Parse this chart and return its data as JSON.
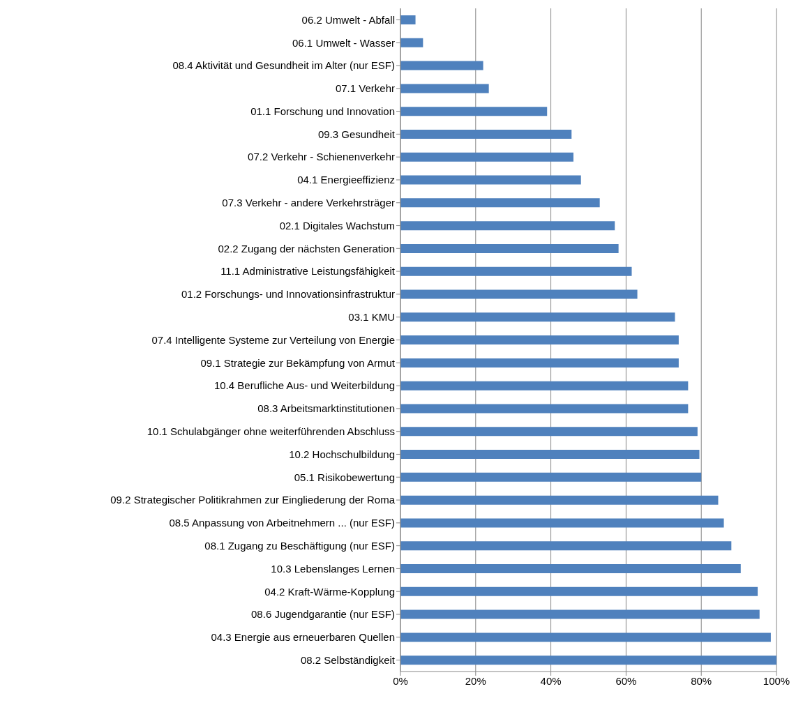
{
  "chart_data": {
    "type": "bar",
    "orientation": "horizontal",
    "categories": [
      "06.2 Umwelt - Abfall",
      "06.1 Umwelt - Wasser",
      "08.4 Aktivität und Gesundheit im Alter (nur ESF)",
      "07.1 Verkehr ",
      "01.1 Forschung und Innovation",
      "09.3 Gesundheit",
      "07.2 Verkehr - Schienenverkehr",
      "04.1 Energieeffizienz",
      "07.3 Verkehr - andere Verkehrsträger",
      "02.1 Digitales Wachstum",
      "02.2 Zugang der nächsten Generation",
      "11.1 Administrative Leistungsfähigkeit",
      "01.2 Forschungs- und Innovationsinfrastruktur",
      "03.1 KMU",
      "07.4 Intelligente Systeme zur Verteilung von Energie",
      "09.1 Strategie zur Bekämpfung von Armut",
      "10.4 Berufliche Aus- und Weiterbildung",
      "08.3 Arbeitsmarktinstitutionen",
      "10.1 Schulabgänger ohne weiterführenden Abschluss",
      "10.2 Hochschulbildung",
      "05.1 Risikobewertung",
      "09.2 Strategischer Politikrahmen zur Eingliederung der Roma",
      "08.5 Anpassung von Arbeitnehmern ... (nur ESF)",
      "08.1 Zugang zu Beschäftigung (nur ESF)",
      "10.3 Lebenslanges Lernen",
      "04.2 Kraft-Wärme-Kopplung",
      "08.6 Jugendgarantie (nur ESF)",
      "04.3 Energie aus erneuerbaren Quellen",
      "08.2 Selbständigkeit"
    ],
    "values": [
      0.04,
      0.06,
      0.22,
      0.235,
      0.39,
      0.455,
      0.46,
      0.48,
      0.53,
      0.57,
      0.58,
      0.615,
      0.63,
      0.73,
      0.74,
      0.74,
      0.765,
      0.765,
      0.79,
      0.795,
      0.8,
      0.845,
      0.86,
      0.88,
      0.905,
      0.95,
      0.955,
      0.985,
      1.0
    ],
    "color": "#4f81bd",
    "xlim": [
      0,
      1
    ],
    "xticks": [
      {
        "value": 0,
        "label": "0%"
      },
      {
        "value": 0.2,
        "label": "20%"
      },
      {
        "value": 0.4,
        "label": "40%"
      },
      {
        "value": 0.6,
        "label": "60%"
      },
      {
        "value": 0.8,
        "label": "80%"
      },
      {
        "value": 1,
        "label": "100%"
      }
    ],
    "grid": "x"
  }
}
